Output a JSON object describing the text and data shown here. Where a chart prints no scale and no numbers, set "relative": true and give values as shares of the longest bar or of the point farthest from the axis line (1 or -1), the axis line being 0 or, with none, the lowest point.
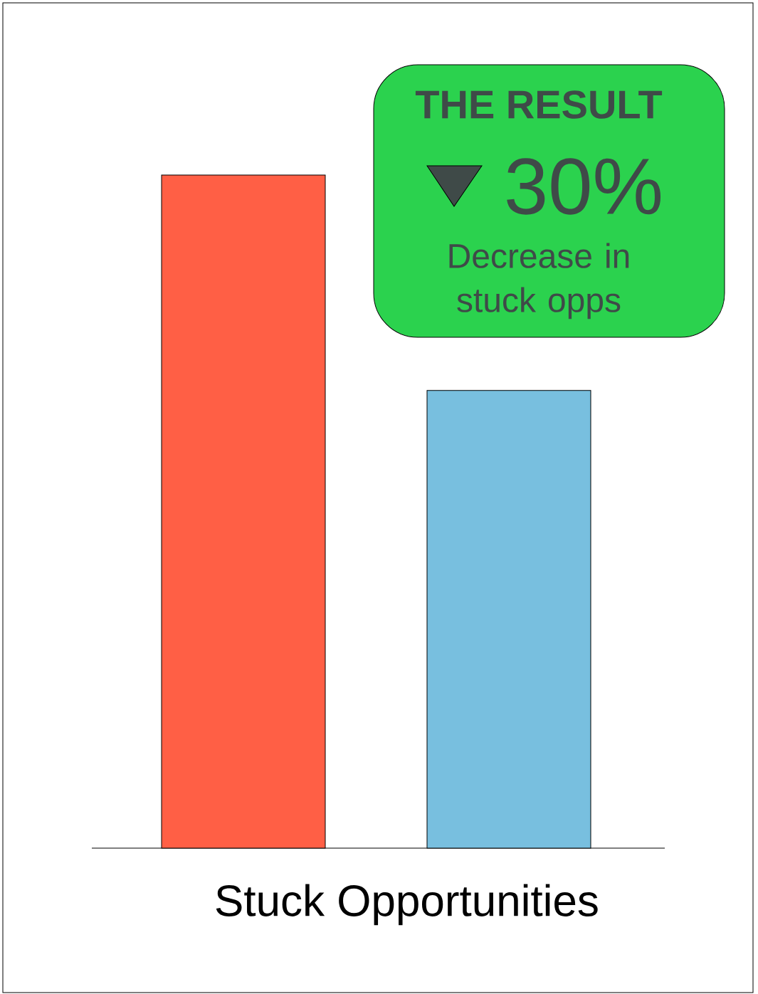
{
  "chart_data": {
    "type": "bar",
    "relative": true,
    "categories": [
      null,
      null
    ],
    "values": [
      1,
      0.68
    ],
    "colors": [
      "#ff5f45",
      "#78bfdf"
    ],
    "xlabel": "Stuck Opportunities",
    "annotations": [
      "THE RESULT",
      "30%",
      "Decrease in stuck opps"
    ]
  }
}
